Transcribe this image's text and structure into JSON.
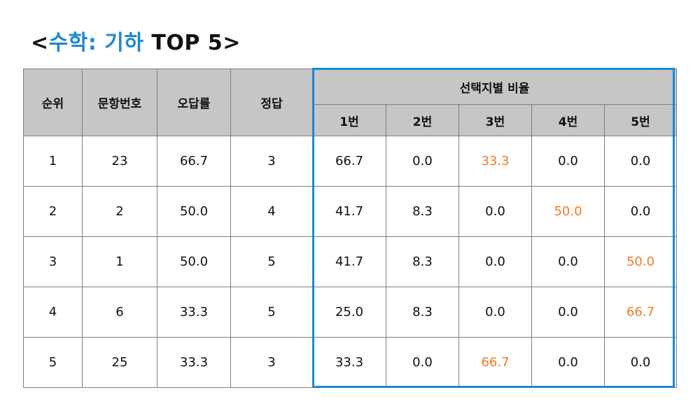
{
  "title": {
    "open": "<",
    "subject": "수학: 기하",
    "rest": " TOP 5>"
  },
  "table": {
    "headers": {
      "rank": "순위",
      "question_no": "문항번호",
      "error_rate": "오답률",
      "answer": "정답",
      "choice_ratio": "선택지별 비율",
      "choices": [
        "1번",
        "2번",
        "3번",
        "4번",
        "5번"
      ]
    },
    "rows": [
      {
        "rank": "1",
        "question_no": "23",
        "error_rate": "66.7",
        "answer": "3",
        "choices": [
          "66.7",
          "0.0",
          "33.3",
          "0.0",
          "0.0"
        ],
        "highlight": 2
      },
      {
        "rank": "2",
        "question_no": "2",
        "error_rate": "50.0",
        "answer": "4",
        "choices": [
          "41.7",
          "8.3",
          "0.0",
          "50.0",
          "0.0"
        ],
        "highlight": 3
      },
      {
        "rank": "3",
        "question_no": "1",
        "error_rate": "50.0",
        "answer": "5",
        "choices": [
          "41.7",
          "8.3",
          "0.0",
          "0.0",
          "50.0"
        ],
        "highlight": 4
      },
      {
        "rank": "4",
        "question_no": "6",
        "error_rate": "33.3",
        "answer": "5",
        "choices": [
          "25.0",
          "8.3",
          "0.0",
          "0.0",
          "66.7"
        ],
        "highlight": 4
      },
      {
        "rank": "5",
        "question_no": "25",
        "error_rate": "33.3",
        "answer": "3",
        "choices": [
          "33.3",
          "0.0",
          "66.7",
          "0.0",
          "0.0"
        ],
        "highlight": 2
      }
    ]
  },
  "colors": {
    "accent_blue": "#1e88d3",
    "highlight_orange": "#f07a2a",
    "header_gray": "#c6c6c6"
  }
}
